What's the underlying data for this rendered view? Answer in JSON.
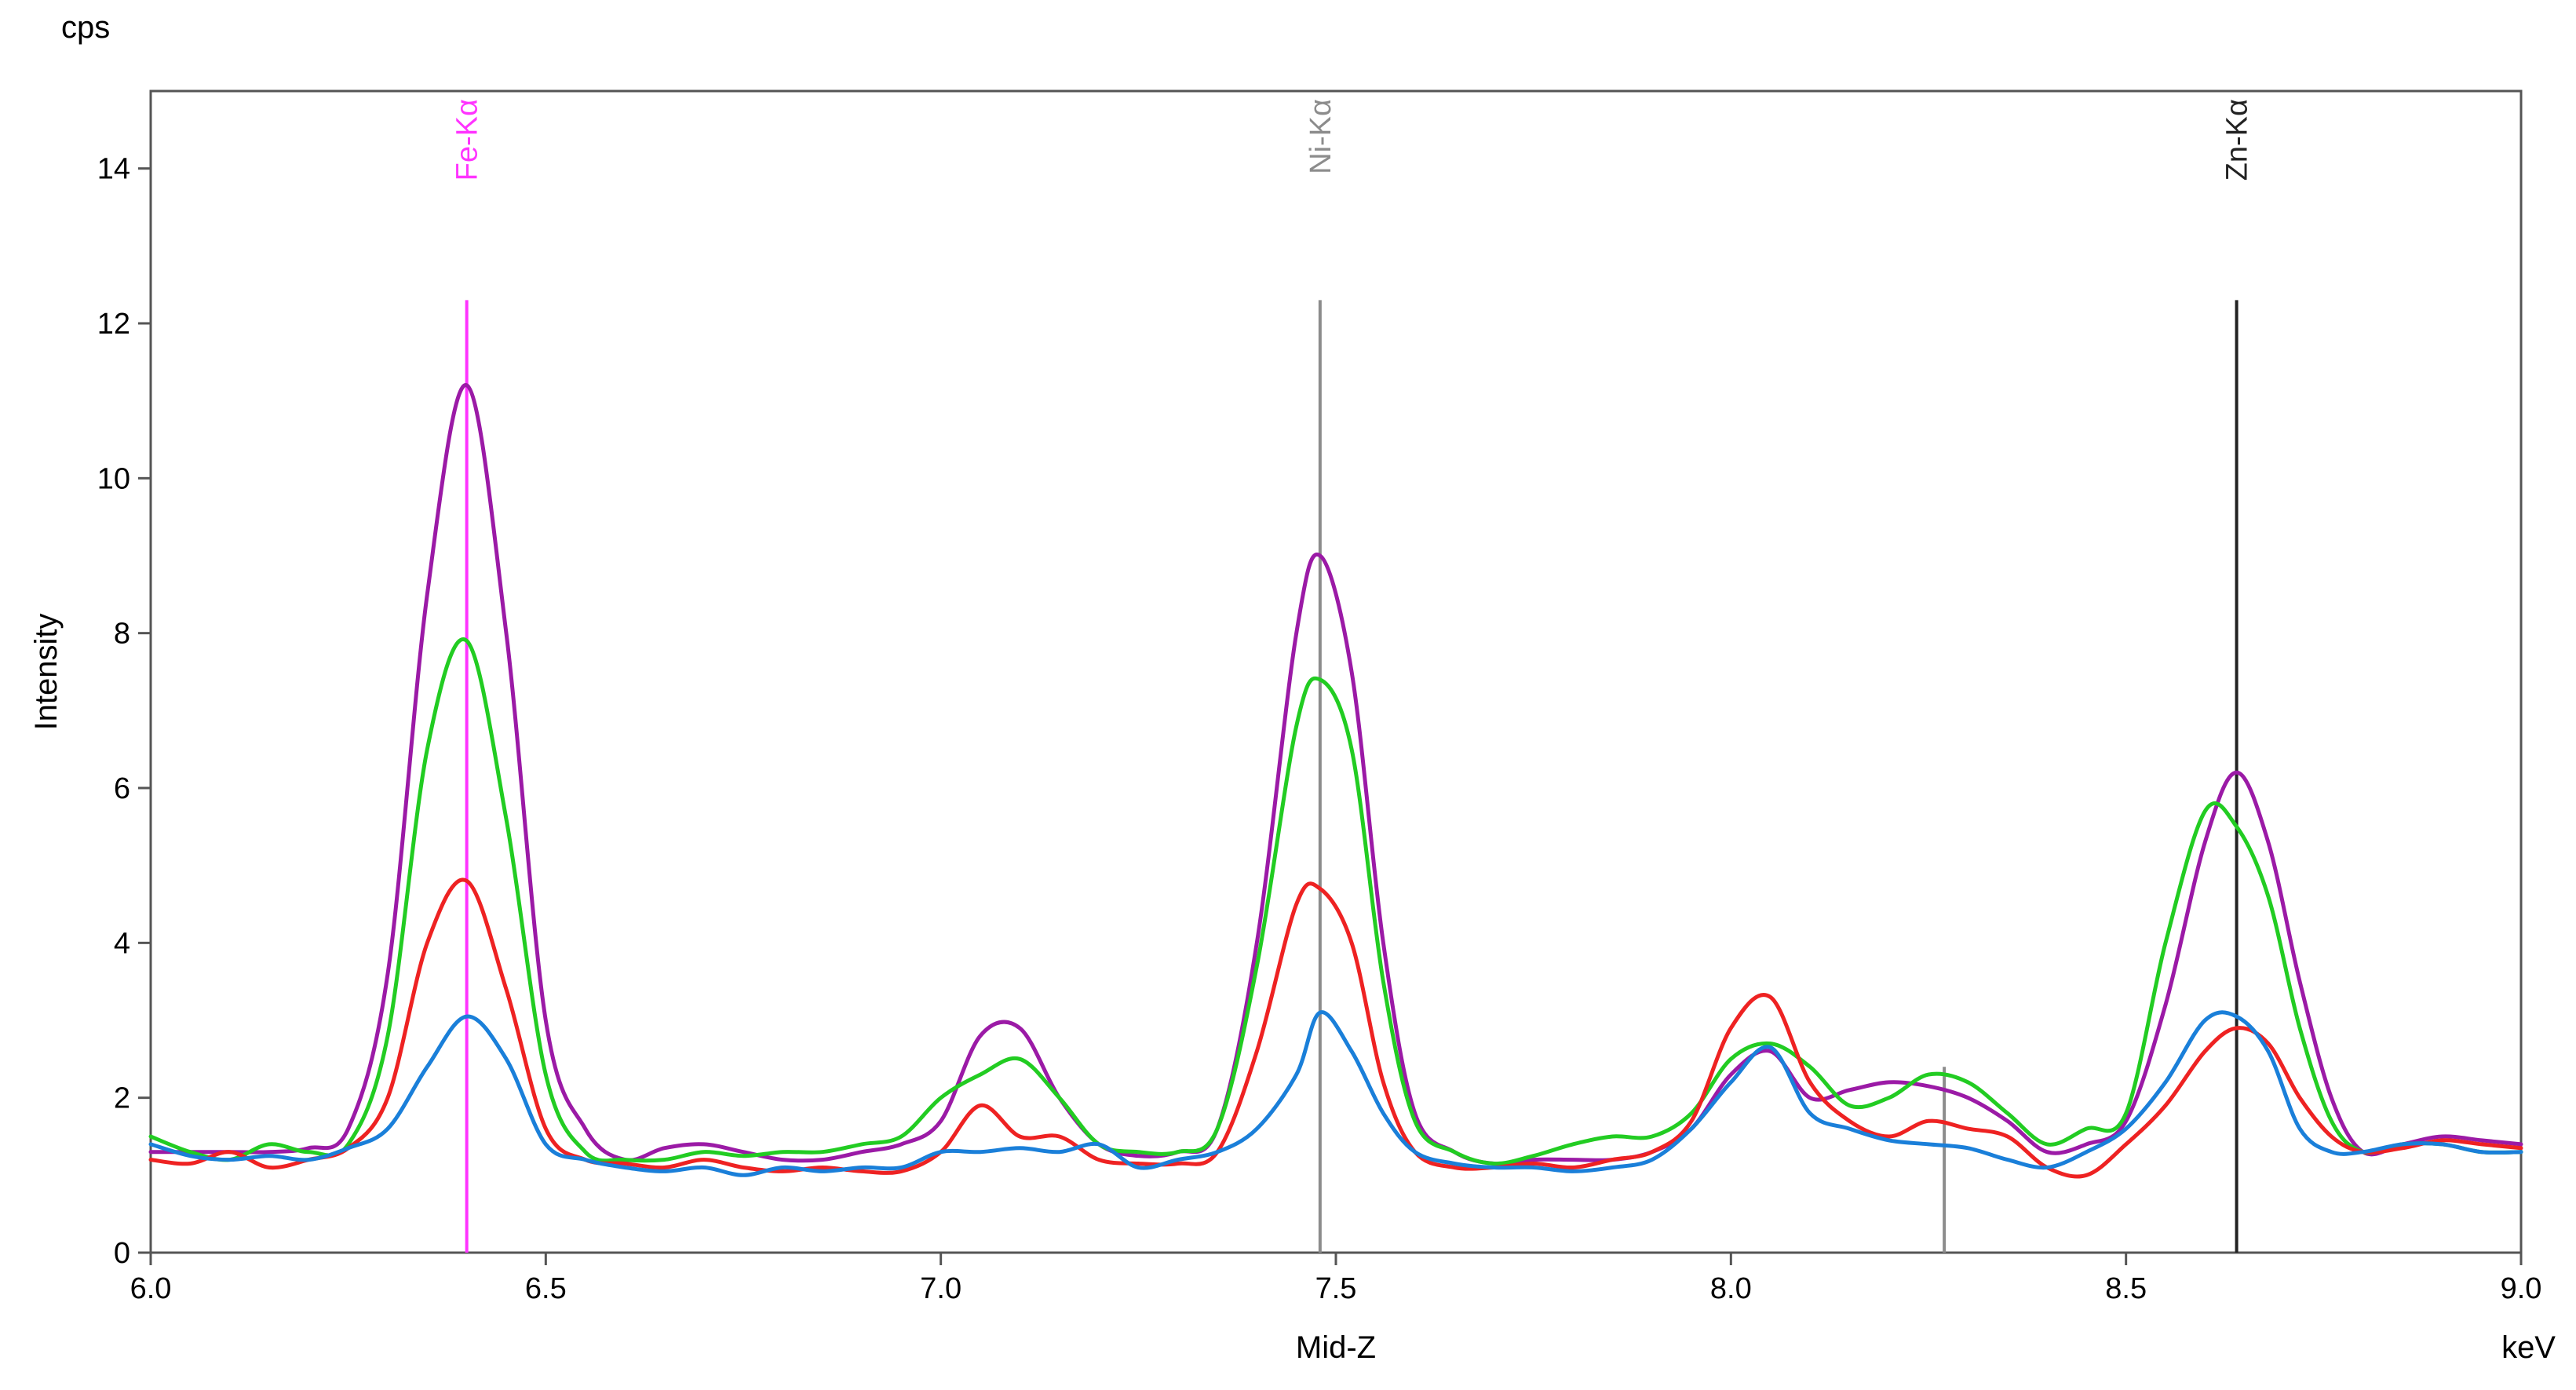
{
  "chart_data": {
    "type": "line",
    "title": "",
    "xlabel": "Mid-Z",
    "ylabel": "Intensity",
    "x_unit": "keV",
    "y_unit": "cps",
    "xlim": [
      6.0,
      9.0
    ],
    "ylim": [
      0,
      15
    ],
    "xticks": [
      6.0,
      6.5,
      7.0,
      7.5,
      8.0,
      8.5,
      9.0
    ],
    "xtick_labels": [
      "6.0",
      "6.5",
      "7.0",
      "7.5",
      "8.0",
      "8.5",
      "9.0"
    ],
    "yticks": [
      0,
      2,
      4,
      6,
      8,
      10,
      12,
      14
    ],
    "ytick_labels": [
      "0",
      "2",
      "4",
      "6",
      "8",
      "10",
      "12",
      "14"
    ],
    "grid": false,
    "markers": [
      {
        "label": "Fe-Kα",
        "x": 6.4,
        "color": "#ff33ff",
        "top": 12.3
      },
      {
        "label": "Ni-Kα",
        "x": 7.48,
        "color": "#8c8c8c",
        "top": 12.3
      },
      {
        "label": "Zn-Kα",
        "x": 8.64,
        "color": "#222222",
        "top": 12.3
      },
      {
        "label": "",
        "x": 8.27,
        "color": "#8c8c8c",
        "top": 2.4
      }
    ],
    "series": [
      {
        "color": "#9b1aa6",
        "x": [
          6.0,
          6.05,
          6.1,
          6.15,
          6.2,
          6.25,
          6.3,
          6.35,
          6.4,
          6.45,
          6.5,
          6.55,
          6.6,
          6.65,
          6.7,
          6.75,
          6.8,
          6.85,
          6.9,
          6.95,
          7.0,
          7.05,
          7.1,
          7.15,
          7.2,
          7.25,
          7.3,
          7.35,
          7.4,
          7.45,
          7.48,
          7.52,
          7.56,
          7.6,
          7.65,
          7.7,
          7.75,
          7.8,
          7.85,
          7.9,
          7.95,
          8.0,
          8.05,
          8.1,
          8.15,
          8.2,
          8.25,
          8.3,
          8.35,
          8.4,
          8.45,
          8.5,
          8.55,
          8.6,
          8.64,
          8.68,
          8.72,
          8.76,
          8.8,
          8.85,
          8.9,
          8.95,
          9.0
        ],
        "y": [
          1.3,
          1.3,
          1.3,
          1.3,
          1.35,
          1.6,
          3.6,
          8.5,
          11.2,
          8.0,
          3.0,
          1.6,
          1.2,
          1.35,
          1.4,
          1.3,
          1.2,
          1.2,
          1.3,
          1.4,
          1.7,
          2.8,
          2.9,
          2.0,
          1.4,
          1.25,
          1.3,
          1.6,
          4.0,
          8.0,
          9.0,
          7.5,
          4.0,
          1.8,
          1.3,
          1.15,
          1.2,
          1.2,
          1.2,
          1.3,
          1.6,
          2.3,
          2.6,
          2.0,
          2.1,
          2.2,
          2.15,
          2.0,
          1.7,
          1.3,
          1.4,
          1.7,
          3.2,
          5.3,
          6.2,
          5.3,
          3.5,
          2.0,
          1.3,
          1.4,
          1.5,
          1.45,
          1.4
        ]
      },
      {
        "color": "#22cc22",
        "x": [
          6.0,
          6.05,
          6.1,
          6.15,
          6.2,
          6.25,
          6.3,
          6.35,
          6.4,
          6.45,
          6.5,
          6.55,
          6.6,
          6.65,
          6.7,
          6.75,
          6.8,
          6.85,
          6.9,
          6.95,
          7.0,
          7.05,
          7.1,
          7.15,
          7.2,
          7.25,
          7.3,
          7.35,
          7.4,
          7.45,
          7.48,
          7.52,
          7.56,
          7.6,
          7.65,
          7.7,
          7.75,
          7.8,
          7.85,
          7.9,
          7.95,
          8.0,
          8.05,
          8.1,
          8.15,
          8.2,
          8.25,
          8.3,
          8.35,
          8.4,
          8.45,
          8.5,
          8.55,
          8.6,
          8.64,
          8.68,
          8.72,
          8.76,
          8.8,
          8.85,
          8.9,
          8.95,
          9.0
        ],
        "y": [
          1.5,
          1.3,
          1.2,
          1.4,
          1.3,
          1.4,
          2.8,
          6.5,
          7.9,
          5.6,
          2.3,
          1.3,
          1.2,
          1.2,
          1.3,
          1.25,
          1.3,
          1.3,
          1.4,
          1.5,
          2.0,
          2.3,
          2.5,
          2.0,
          1.4,
          1.3,
          1.3,
          1.6,
          3.7,
          6.8,
          7.4,
          6.5,
          3.5,
          1.7,
          1.3,
          1.15,
          1.25,
          1.4,
          1.5,
          1.5,
          1.8,
          2.5,
          2.7,
          2.4,
          1.9,
          2.0,
          2.3,
          2.2,
          1.8,
          1.4,
          1.6,
          1.8,
          4.0,
          5.7,
          5.5,
          4.6,
          2.9,
          1.7,
          1.3,
          1.4,
          1.4,
          1.3,
          1.3
        ]
      },
      {
        "color": "#ee2222",
        "x": [
          6.0,
          6.05,
          6.1,
          6.15,
          6.2,
          6.25,
          6.3,
          6.35,
          6.4,
          6.45,
          6.5,
          6.55,
          6.6,
          6.65,
          6.7,
          6.75,
          6.8,
          6.85,
          6.9,
          6.95,
          7.0,
          7.05,
          7.1,
          7.15,
          7.2,
          7.25,
          7.3,
          7.35,
          7.4,
          7.45,
          7.48,
          7.52,
          7.56,
          7.6,
          7.65,
          7.7,
          7.75,
          7.8,
          7.85,
          7.9,
          7.95,
          8.0,
          8.05,
          8.1,
          8.15,
          8.2,
          8.25,
          8.3,
          8.35,
          8.4,
          8.45,
          8.5,
          8.55,
          8.6,
          8.64,
          8.68,
          8.72,
          8.76,
          8.8,
          8.85,
          8.9,
          8.95,
          9.0
        ],
        "y": [
          1.2,
          1.15,
          1.3,
          1.1,
          1.2,
          1.35,
          2.0,
          4.0,
          4.8,
          3.4,
          1.6,
          1.2,
          1.15,
          1.1,
          1.2,
          1.1,
          1.05,
          1.1,
          1.05,
          1.05,
          1.3,
          1.9,
          1.5,
          1.5,
          1.2,
          1.15,
          1.15,
          1.3,
          2.6,
          4.5,
          4.7,
          4.0,
          2.2,
          1.3,
          1.1,
          1.1,
          1.15,
          1.1,
          1.2,
          1.3,
          1.7,
          2.9,
          3.3,
          2.2,
          1.7,
          1.5,
          1.7,
          1.6,
          1.5,
          1.1,
          1.0,
          1.4,
          1.9,
          2.6,
          2.9,
          2.7,
          2.0,
          1.5,
          1.3,
          1.35,
          1.45,
          1.4,
          1.35
        ]
      },
      {
        "color": "#1a7fd9",
        "x": [
          6.0,
          6.05,
          6.1,
          6.15,
          6.2,
          6.25,
          6.3,
          6.35,
          6.4,
          6.45,
          6.5,
          6.55,
          6.6,
          6.65,
          6.7,
          6.75,
          6.8,
          6.85,
          6.9,
          6.95,
          7.0,
          7.05,
          7.1,
          7.15,
          7.2,
          7.25,
          7.3,
          7.35,
          7.4,
          7.45,
          7.48,
          7.52,
          7.56,
          7.6,
          7.65,
          7.7,
          7.75,
          7.8,
          7.85,
          7.9,
          7.95,
          8.0,
          8.05,
          8.1,
          8.15,
          8.2,
          8.25,
          8.3,
          8.35,
          8.4,
          8.45,
          8.5,
          8.55,
          8.6,
          8.64,
          8.68,
          8.72,
          8.76,
          8.8,
          8.85,
          8.9,
          8.95,
          9.0
        ],
        "y": [
          1.4,
          1.25,
          1.2,
          1.25,
          1.2,
          1.35,
          1.6,
          2.4,
          3.05,
          2.5,
          1.4,
          1.2,
          1.1,
          1.05,
          1.1,
          1.0,
          1.1,
          1.05,
          1.1,
          1.1,
          1.3,
          1.3,
          1.35,
          1.3,
          1.4,
          1.1,
          1.2,
          1.3,
          1.6,
          2.3,
          3.1,
          2.6,
          1.8,
          1.3,
          1.15,
          1.1,
          1.1,
          1.05,
          1.1,
          1.2,
          1.6,
          2.2,
          2.65,
          1.8,
          1.6,
          1.45,
          1.4,
          1.35,
          1.2,
          1.1,
          1.3,
          1.6,
          2.2,
          3.0,
          3.05,
          2.6,
          1.6,
          1.3,
          1.3,
          1.4,
          1.4,
          1.3,
          1.3
        ]
      }
    ]
  }
}
